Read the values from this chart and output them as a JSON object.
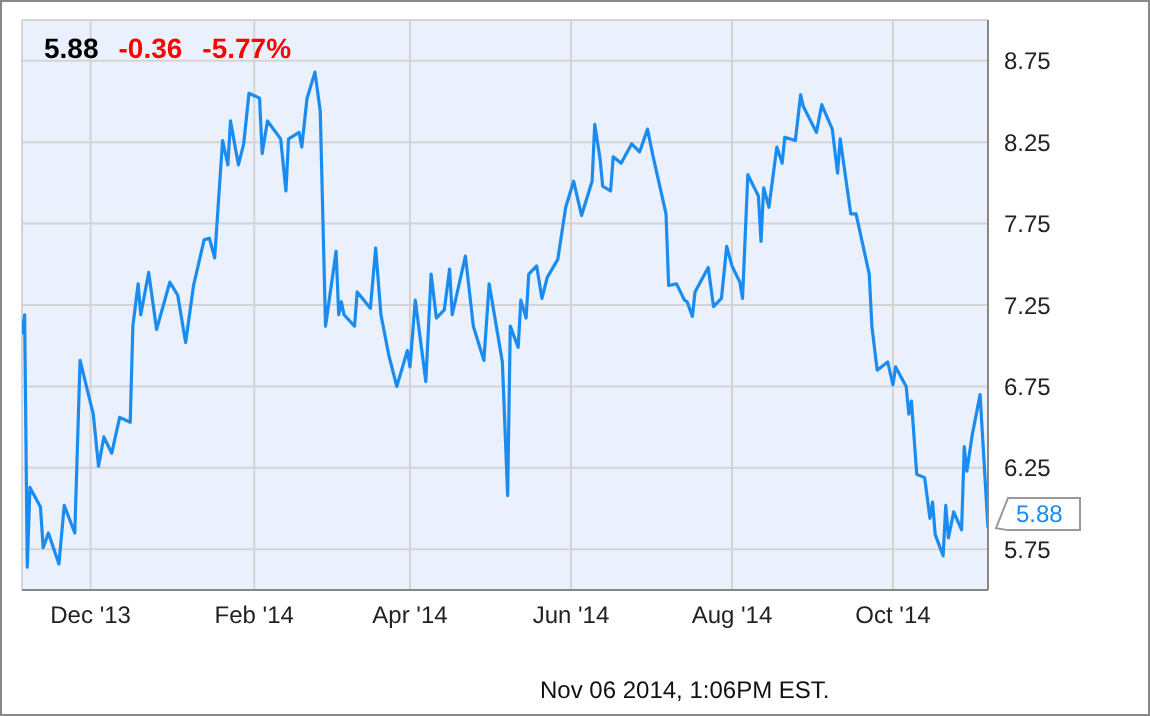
{
  "chart_data": {
    "type": "line",
    "title": "5.88",
    "annotations": [
      "-0.36",
      "-5.77%",
      "Nov 06 2014, 1:06PM EST."
    ],
    "x": [
      "2013-11-05",
      "2013-11-06",
      "2013-11-07",
      "2013-11-08",
      "2013-11-12",
      "2013-11-13",
      "2013-11-15",
      "2013-11-19",
      "2013-11-21",
      "2013-11-25",
      "2013-11-27",
      "2013-12-02",
      "2013-12-04",
      "2013-12-06",
      "2013-12-09",
      "2013-12-12",
      "2013-12-16",
      "2013-12-17",
      "2013-12-19",
      "2013-12-20",
      "2013-12-23",
      "2013-12-26",
      "2013-12-31",
      "2014-01-03",
      "2014-01-06",
      "2014-01-09",
      "2014-01-13",
      "2014-01-15",
      "2014-01-17",
      "2014-01-20",
      "2014-01-22",
      "2014-01-23",
      "2014-01-26",
      "2014-01-28",
      "2014-01-30",
      "2014-02-03",
      "2014-02-04",
      "2014-02-06",
      "2014-02-11",
      "2014-02-13",
      "2014-02-14",
      "2014-02-18",
      "2014-02-19",
      "2014-02-21",
      "2014-02-24",
      "2014-02-26",
      "2014-02-28",
      "2014-03-04",
      "2014-03-05",
      "2014-03-06",
      "2014-03-07",
      "2014-03-11",
      "2014-03-12",
      "2014-03-17",
      "2014-03-19",
      "2014-03-21",
      "2014-03-24",
      "2014-03-27",
      "2014-03-31",
      "2014-04-01",
      "2014-04-03",
      "2014-04-07",
      "2014-04-09",
      "2014-04-11",
      "2014-04-14",
      "2014-04-16",
      "2014-04-17",
      "2014-04-22",
      "2014-04-25",
      "2014-04-29",
      "2014-05-01",
      "2014-05-06",
      "2014-05-08",
      "2014-05-09",
      "2014-05-12",
      "2014-05-13",
      "2014-05-15",
      "2014-05-16",
      "2014-05-19",
      "2014-05-21",
      "2014-05-23",
      "2014-05-27",
      "2014-05-30",
      "2014-06-02",
      "2014-06-05",
      "2014-06-09",
      "2014-06-10",
      "2014-06-12",
      "2014-06-13",
      "2014-06-16",
      "2014-06-17",
      "2014-06-20",
      "2014-06-24",
      "2014-06-27",
      "2014-06-30",
      "2014-07-02",
      "2014-07-07",
      "2014-07-08",
      "2014-07-11",
      "2014-07-14",
      "2014-07-15",
      "2014-07-17",
      "2014-07-18",
      "2014-07-23",
      "2014-07-25",
      "2014-07-28",
      "2014-07-30",
      "2014-08-01",
      "2014-08-04",
      "2014-08-05",
      "2014-08-07",
      "2014-08-11",
      "2014-08-12",
      "2014-08-13",
      "2014-08-15",
      "2014-08-18",
      "2014-08-20",
      "2014-08-21",
      "2014-08-25",
      "2014-08-27",
      "2014-08-28",
      "2014-09-02",
      "2014-09-04",
      "2014-09-08",
      "2014-09-10",
      "2014-09-11",
      "2014-09-15",
      "2014-09-17",
      "2014-09-22",
      "2014-09-23",
      "2014-09-25",
      "2014-09-29",
      "2014-10-01",
      "2014-10-02",
      "2014-10-06",
      "2014-10-07",
      "2014-10-08",
      "2014-10-10",
      "2014-10-13",
      "2014-10-15",
      "2014-10-16",
      "2014-10-17",
      "2014-10-20",
      "2014-10-21",
      "2014-10-22",
      "2014-10-24",
      "2014-10-27",
      "2014-10-28",
      "2014-10-29",
      "2014-10-31",
      "2014-11-03",
      "2014-11-06"
    ],
    "series": [
      {
        "color": "#1a8cf0",
        "values": [
          7.07,
          7.19,
          5.64,
          6.13,
          6.01,
          5.76,
          5.85,
          5.66,
          6.02,
          5.85,
          6.91,
          6.58,
          6.26,
          6.44,
          6.34,
          6.56,
          6.53,
          7.12,
          7.38,
          7.19,
          7.45,
          7.1,
          7.39,
          7.31,
          7.02,
          7.37,
          7.65,
          7.66,
          7.54,
          8.26,
          8.11,
          8.38,
          8.11,
          8.24,
          8.55,
          8.52,
          8.18,
          8.38,
          8.27,
          7.95,
          8.27,
          8.31,
          8.22,
          8.52,
          8.68,
          8.44,
          7.12,
          7.58,
          7.19,
          7.27,
          7.19,
          7.12,
          7.33,
          7.23,
          7.6,
          7.19,
          6.94,
          6.75,
          6.97,
          6.87,
          7.28,
          6.78,
          7.44,
          7.17,
          7.22,
          7.47,
          7.19,
          7.55,
          7.12,
          6.91,
          7.38,
          6.9,
          6.08,
          7.12,
          6.99,
          7.28,
          7.17,
          7.44,
          7.49,
          7.29,
          7.42,
          7.53,
          7.85,
          8.01,
          7.8,
          8.01,
          8.36,
          8.15,
          7.98,
          7.95,
          8.16,
          8.12,
          8.24,
          8.19,
          8.33,
          8.17,
          7.81,
          7.37,
          7.38,
          7.28,
          7.27,
          7.18,
          7.33,
          7.48,
          7.24,
          7.29,
          7.61,
          7.49,
          7.39,
          7.29,
          8.05,
          7.92,
          7.64,
          7.97,
          7.85,
          8.22,
          8.12,
          8.28,
          8.26,
          8.54,
          8.47,
          8.31,
          8.48,
          8.33,
          8.06,
          8.27,
          7.81,
          7.81,
          7.44,
          7.12,
          6.85,
          6.9,
          6.76,
          6.87,
          6.75,
          6.58,
          6.66,
          6.21,
          6.19,
          5.94,
          6.04,
          5.84,
          5.71,
          6.02,
          5.82,
          5.98,
          5.87,
          6.38,
          6.23,
          6.45,
          6.7,
          5.88
        ],
        "value_labels": [
          null,
          null,
          null,
          null,
          null,
          null,
          null,
          null,
          null,
          null,
          null,
          null,
          null,
          null,
          null,
          null,
          null,
          null,
          null,
          null,
          null,
          null,
          null,
          null,
          null,
          null,
          null,
          null,
          null,
          null,
          null,
          null,
          null,
          null,
          null,
          null,
          null,
          null,
          null,
          null,
          null,
          null,
          null,
          null,
          null,
          null,
          null,
          null,
          null,
          null,
          null,
          null,
          null,
          null,
          null,
          null,
          null,
          null,
          null,
          null,
          null,
          null,
          null,
          null,
          null,
          null,
          null,
          null,
          null,
          null,
          null,
          null,
          null,
          null,
          null,
          null,
          null,
          null,
          null,
          null,
          null,
          null,
          null,
          null,
          null,
          null,
          null,
          null,
          null,
          null,
          null,
          null,
          null,
          null,
          null,
          null,
          null,
          null,
          null,
          null,
          null,
          null,
          null,
          null,
          null,
          null,
          null,
          null,
          null,
          null,
          null,
          null,
          null,
          null,
          null,
          null,
          null,
          null,
          null,
          null,
          null,
          null,
          null,
          null,
          null,
          null,
          null,
          null,
          null,
          null,
          null,
          null,
          null,
          null,
          null,
          null,
          null,
          null,
          null,
          null,
          null,
          null,
          null,
          null,
          null,
          null,
          null,
          null,
          null,
          null,
          null,
          "5.88"
        ]
      }
    ],
    "xlim": [
      "2013-11-05",
      "2014-11-06"
    ],
    "xticks": [
      {
        "value": "2013-12-01",
        "label": "Dec '13"
      },
      {
        "value": "2014-02-01",
        "label": "Feb '14"
      },
      {
        "value": "2014-04-01",
        "label": "Apr '14"
      },
      {
        "value": "2014-06-01",
        "label": "Jun '14"
      },
      {
        "value": "2014-08-01",
        "label": "Aug '14"
      },
      {
        "value": "2014-10-01",
        "label": "Oct '14"
      }
    ],
    "ylim": [
      5.5,
      9.0
    ],
    "yticks": [
      5.75,
      6.25,
      6.75,
      7.25,
      7.75,
      8.25,
      8.75
    ],
    "grid": true,
    "legend": false,
    "marker": "none",
    "line_style": "solid"
  }
}
